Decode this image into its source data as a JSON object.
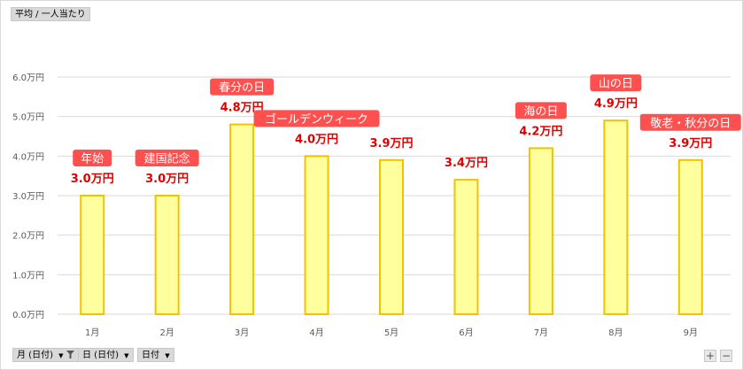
{
  "value_field": "平均 / 一人当たり",
  "axis_fields": [
    {
      "label": "月 (日付)",
      "icon": "filter-icon"
    },
    {
      "label": "日 (日付)",
      "icon": "chevron-down-icon"
    },
    {
      "label": "日付",
      "icon": "chevron-down-icon"
    }
  ],
  "zoom": {
    "plus": "+",
    "minus": "−"
  },
  "colors": {
    "bar_fill": "#ffff9e",
    "bar_stroke": "#f2c200",
    "value_label": "#e00000",
    "callout_fill": "#ff5050",
    "callout_text": "#ffffff",
    "grid": "#d9d9d9",
    "axis_text": "#595959"
  },
  "chart_data": {
    "type": "bar",
    "categories": [
      "1月",
      "2月",
      "3月",
      "4月",
      "5月",
      "6月",
      "7月",
      "8月",
      "9月"
    ],
    "values": [
      3.0,
      3.0,
      4.8,
      4.0,
      3.9,
      3.4,
      4.2,
      4.9,
      3.9
    ],
    "data_labels": [
      "3.0万円",
      "3.0万円",
      "4.8万円",
      "4.0万円",
      "3.9万円",
      "3.4万円",
      "4.2万円",
      "4.9万円",
      "3.9万円"
    ],
    "callouts": [
      "年始",
      "建国記念",
      "春分の日",
      "ゴールデンウィーク",
      "",
      "",
      "海の日",
      "山の日",
      "敬老・秋分の日"
    ],
    "y_ticks": [
      0,
      1,
      2,
      3,
      4,
      5,
      6
    ],
    "y_tick_labels": [
      "0.0万円",
      "1.0万円",
      "2.0万円",
      "3.0万円",
      "4.0万円",
      "5.0万円",
      "6.0万円"
    ],
    "ylim": [
      0,
      6
    ],
    "grid": true,
    "legend": "none"
  }
}
